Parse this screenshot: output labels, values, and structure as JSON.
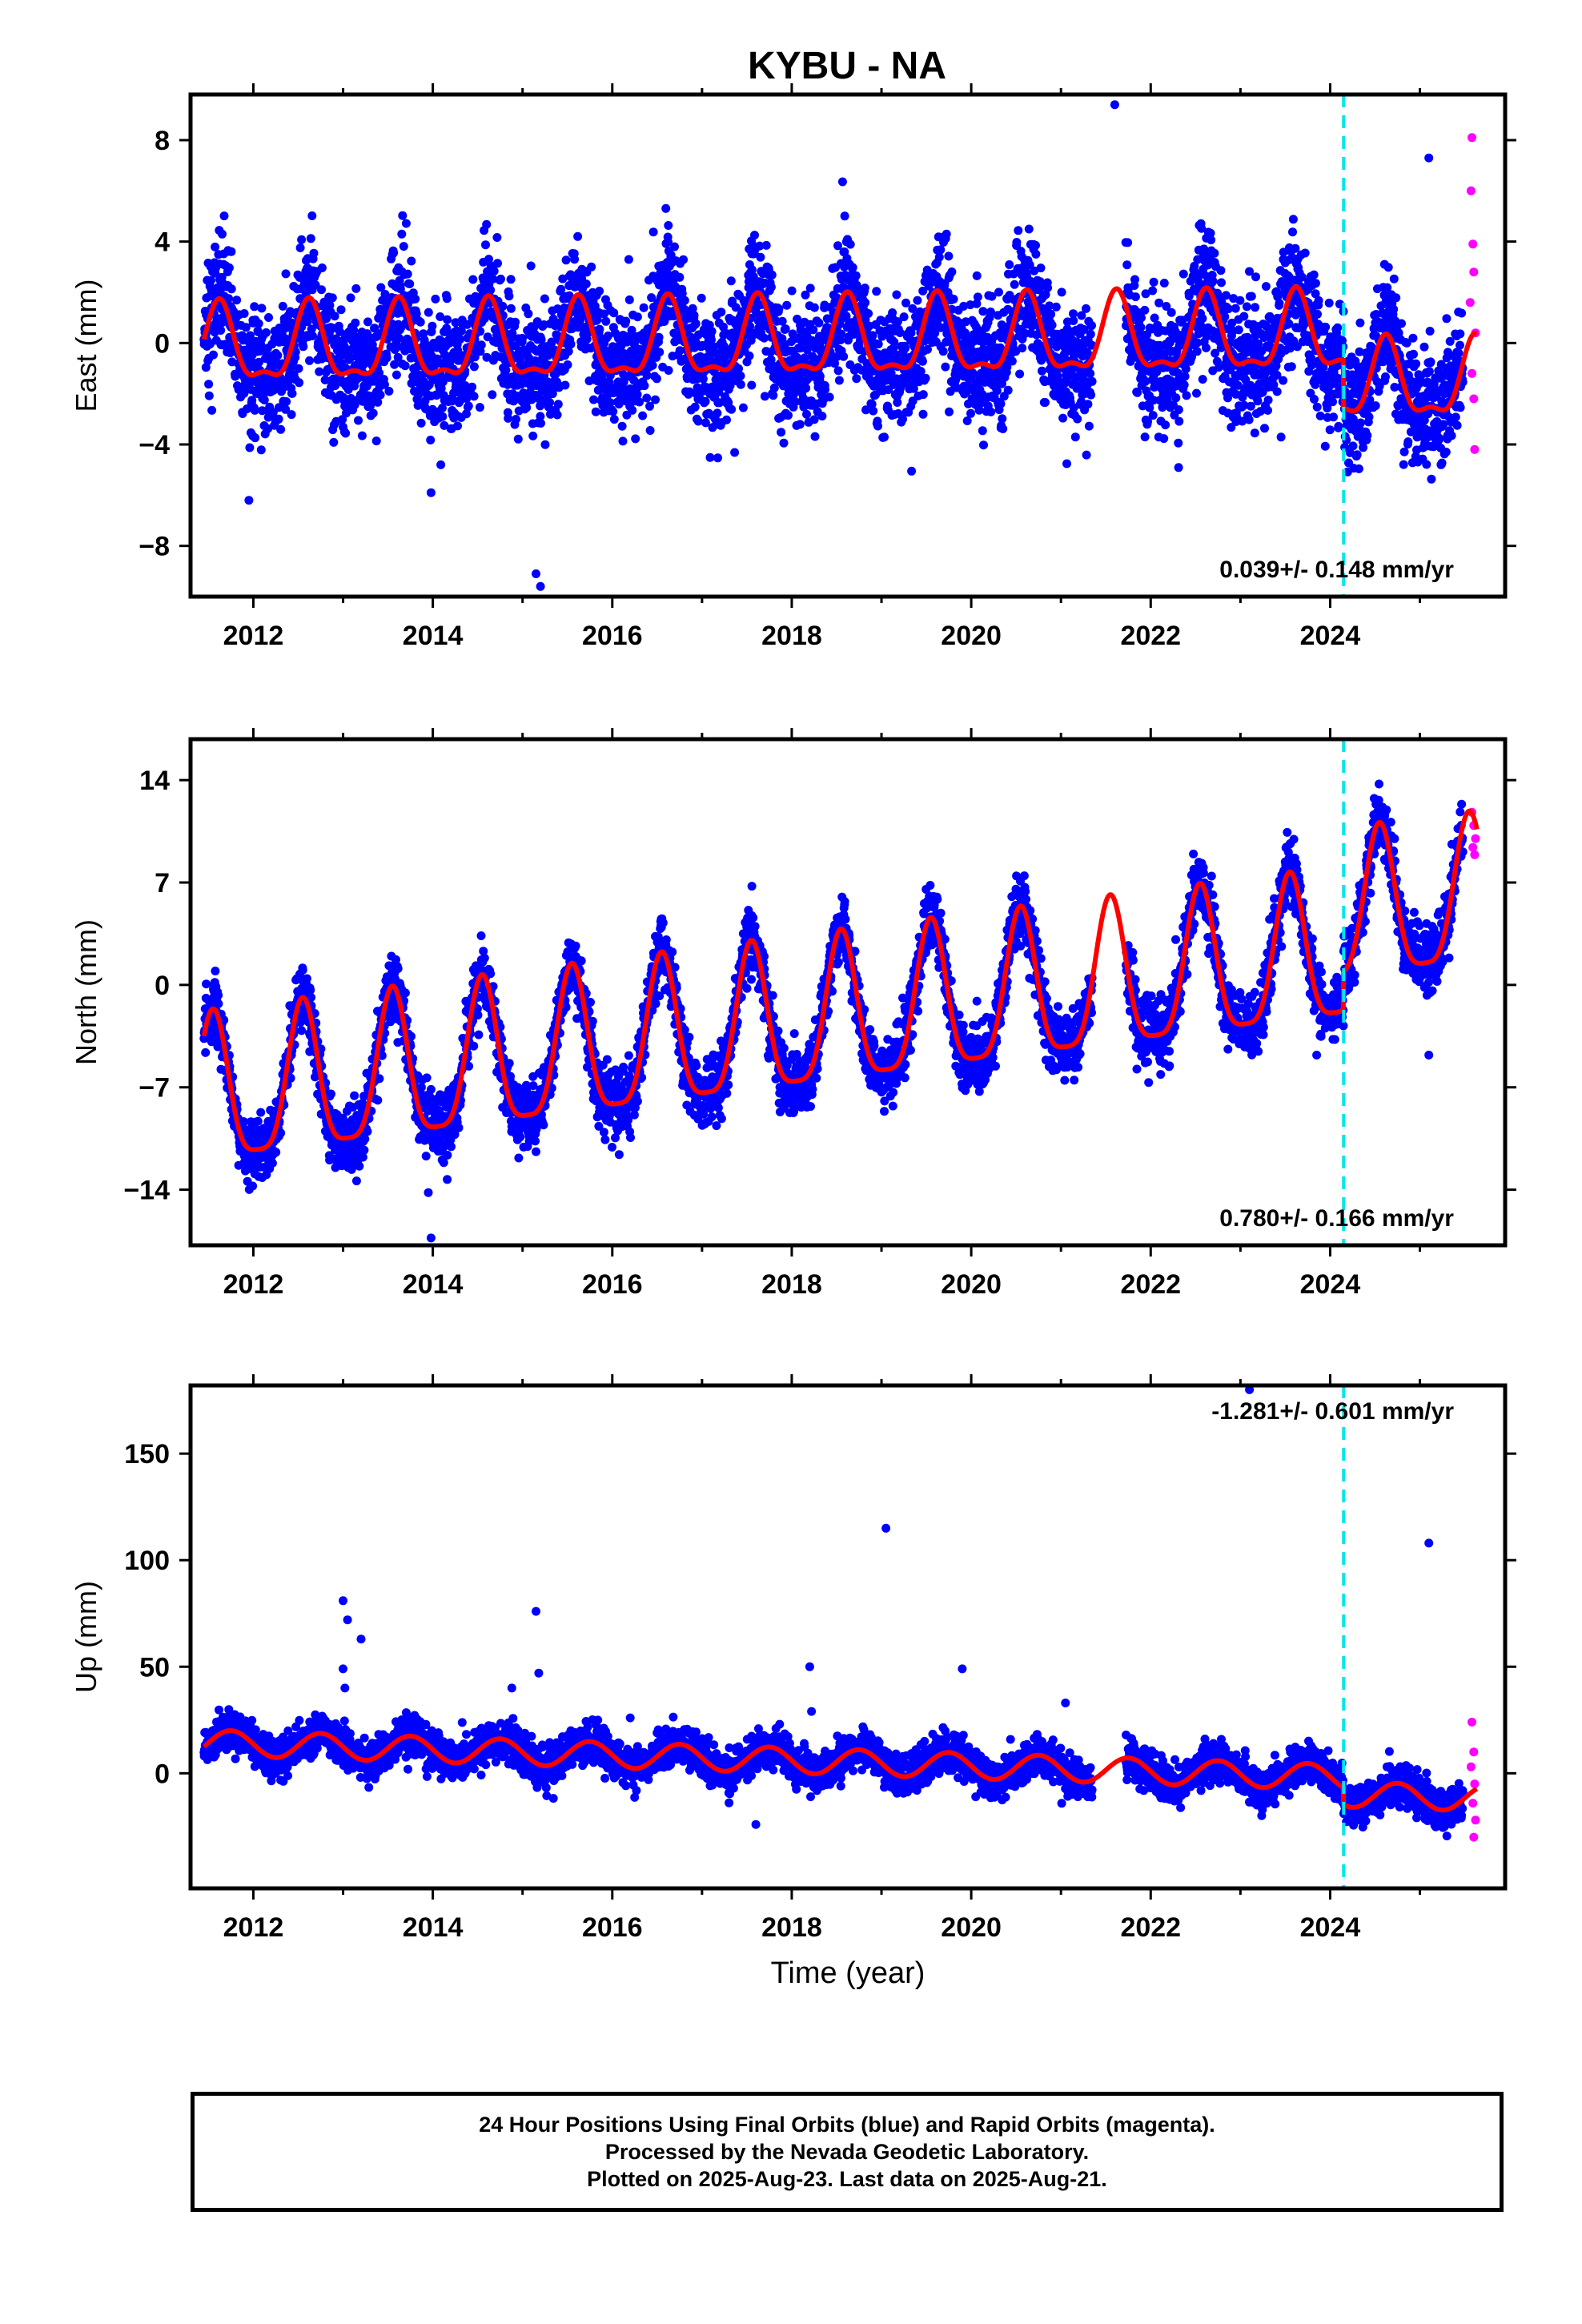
{
  "title": "KYBU - NA",
  "footer": {
    "lines": [
      "24 Hour Positions Using Final Orbits (blue) and Rapid Orbits (magenta).",
      "Processed by the Nevada Geodetic Laboratory.",
      "Plotted on 2025-Aug-23. Last data on 2025-Aug-21."
    ]
  },
  "colors": {
    "final_orbits": "#0000ff",
    "rapid_orbits": "#ff00ff",
    "model_fit": "#ff0000",
    "equipment_change": "#00e5ee",
    "frame": "#000000"
  },
  "chart_data": [
    {
      "type": "scatter",
      "name": "East",
      "ylabel": "East (mm)",
      "xlabel": "",
      "xlim": [
        2011.3,
        2025.95
      ],
      "ylim": [
        -10,
        9.8
      ],
      "yticks": [
        8,
        4,
        0,
        -4,
        -8
      ],
      "xticks": [
        2012,
        2014,
        2016,
        2018,
        2020,
        2022,
        2024
      ],
      "rate_label": "0.039+/- 0.148 mm/yr",
      "rate_label_position": "bottom-right",
      "vertical_marker_x": 2024.15,
      "data_start": 2011.45,
      "rapid_start": 2025.48,
      "data_end": 2025.64,
      "model": {
        "offset": 0.0,
        "trend_mm_per_yr": 0.039,
        "annual_amplitude": 1.45,
        "annual_peak": 0.62,
        "semiannual_amplitude": 0.55,
        "semiannual_peak": 0.62,
        "step_at": 2024.15,
        "step_size": -1.9
      },
      "scatter_sd": 1.2,
      "outliers": [
        [
          2021.6,
          9.4
        ],
        [
          2015.15,
          -9.1
        ],
        [
          2015.2,
          -9.6
        ],
        [
          2025.1,
          7.3
        ],
        [
          2013.98,
          -5.9
        ],
        [
          2011.95,
          -6.2
        ]
      ],
      "rapid_points": [
        [
          2025.58,
          8.1
        ],
        [
          2025.57,
          6.0
        ],
        [
          2025.59,
          3.9
        ],
        [
          2025.6,
          2.8
        ],
        [
          2025.56,
          1.6
        ],
        [
          2025.62,
          0.4
        ],
        [
          2025.58,
          -1.2
        ],
        [
          2025.6,
          -2.2
        ],
        [
          2025.61,
          -4.2
        ]
      ]
    },
    {
      "type": "scatter",
      "name": "North",
      "ylabel": "North (mm)",
      "xlabel": "",
      "xlim": [
        2011.3,
        2025.95
      ],
      "ylim": [
        -17.8,
        16.8
      ],
      "yticks": [
        14,
        7,
        0,
        -7,
        -14
      ],
      "xticks": [
        2012,
        2014,
        2016,
        2018,
        2020,
        2022,
        2024
      ],
      "rate_label": "0.780+/- 0.166 mm/yr",
      "rate_label_position": "bottom-right",
      "vertical_marker_x": 2024.15,
      "data_start": 2011.45,
      "rapid_start": 2025.48,
      "data_end": 2025.64,
      "model": {
        "offset": -2.8,
        "trend_mm_per_yr": 0.78,
        "annual_amplitude": 5.0,
        "annual_peak": 0.55,
        "semiannual_amplitude": 1.2,
        "semiannual_peak": 0.55,
        "step_at": 2024.15,
        "step_size": 2.6
      },
      "scatter_sd": 1.1,
      "outliers": [
        [
          2013.95,
          -14.2
        ],
        [
          2013.98,
          -17.3
        ],
        [
          2015.15,
          -11.4
        ],
        [
          2023.85,
          -4.8
        ],
        [
          2025.1,
          -4.8
        ],
        [
          2013.15,
          -13.4
        ]
      ],
      "rapid_points": [
        [
          2025.58,
          11.8
        ],
        [
          2025.6,
          10.9
        ],
        [
          2025.62,
          10.0
        ],
        [
          2025.59,
          9.4
        ],
        [
          2025.61,
          8.9
        ]
      ]
    },
    {
      "type": "scatter",
      "name": "Up",
      "ylabel": "Up (mm)",
      "xlabel": "Time (year)",
      "xlim": [
        2011.3,
        2025.95
      ],
      "ylim": [
        -54,
        182
      ],
      "yticks": [
        150,
        100,
        50,
        0
      ],
      "xticks": [
        2012,
        2014,
        2016,
        2018,
        2020,
        2022,
        2024
      ],
      "rate_label": "-1.281+/- 0.601 mm/yr",
      "rate_label_position": "top-right",
      "vertical_marker_x": 2024.15,
      "data_start": 2011.45,
      "rapid_start": 2025.48,
      "data_end": 2025.64,
      "model": {
        "offset": 6.0,
        "trend_mm_per_yr": -1.281,
        "annual_amplitude": 6.0,
        "annual_peak": 0.75,
        "semiannual_amplitude": 0.0,
        "semiannual_peak": 0.0,
        "step_at": 2024.15,
        "step_size": -8.0
      },
      "scatter_sd": 4.5,
      "outliers": [
        [
          2013.0,
          81
        ],
        [
          2013.05,
          72
        ],
        [
          2013.2,
          63
        ],
        [
          2013.0,
          49
        ],
        [
          2013.02,
          40
        ],
        [
          2015.15,
          76
        ],
        [
          2015.18,
          47
        ],
        [
          2014.88,
          40
        ],
        [
          2018.2,
          50
        ],
        [
          2018.22,
          29
        ],
        [
          2019.05,
          115
        ],
        [
          2019.9,
          49
        ],
        [
          2021.05,
          33
        ],
        [
          2023.1,
          180
        ],
        [
          2025.1,
          108
        ],
        [
          2017.6,
          -24
        ],
        [
          2016.2,
          26
        ]
      ],
      "rapid_points": [
        [
          2025.58,
          24
        ],
        [
          2025.6,
          10
        ],
        [
          2025.57,
          3
        ],
        [
          2025.61,
          -5
        ],
        [
          2025.59,
          -14
        ],
        [
          2025.62,
          -22
        ],
        [
          2025.6,
          -30
        ]
      ]
    }
  ]
}
